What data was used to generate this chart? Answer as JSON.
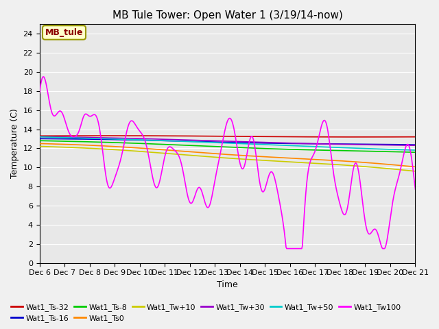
{
  "title": "MB Tule Tower: Open Water 1 (3/19/14-now)",
  "xlabel": "Time",
  "ylabel": "Temperature (C)",
  "ylim": [
    0,
    25
  ],
  "yticks": [
    0,
    2,
    4,
    6,
    8,
    10,
    12,
    14,
    16,
    18,
    20,
    22,
    24
  ],
  "xlim": [
    0,
    15
  ],
  "fig_bg": "#f0f0f0",
  "ax_bg": "#e8e8e8",
  "legend_label": "MB_tule",
  "series": [
    {
      "name": "Wat1_Ts-32",
      "color": "#cc0000"
    },
    {
      "name": "Wat1_Ts-16",
      "color": "#0000cc"
    },
    {
      "name": "Wat1_Ts-8",
      "color": "#00cc00"
    },
    {
      "name": "Wat1_Ts0",
      "color": "#ff8800"
    },
    {
      "name": "Wat1_Tw+10",
      "color": "#cccc00"
    },
    {
      "name": "Wat1_Tw+30",
      "color": "#9900cc"
    },
    {
      "name": "Wat1_Tw+50",
      "color": "#00cccc"
    },
    {
      "name": "Wat1_Tw100",
      "color": "#ff00ff"
    }
  ],
  "x_tick_labels": [
    "Dec 6",
    "Dec 7",
    "Dec 8",
    "Dec 9",
    "Dec 10",
    "Dec 11",
    "Dec 12",
    "Dec 13",
    "Dec 14",
    "Dec 15",
    "Dec 16",
    "Dec 17",
    "Dec 18",
    "Dec 19",
    "Dec 20",
    "Dec 21"
  ],
  "n_points": 600,
  "title_fontsize": 11,
  "tick_fontsize": 8,
  "label_fontsize": 9,
  "legend_fontsize": 8
}
